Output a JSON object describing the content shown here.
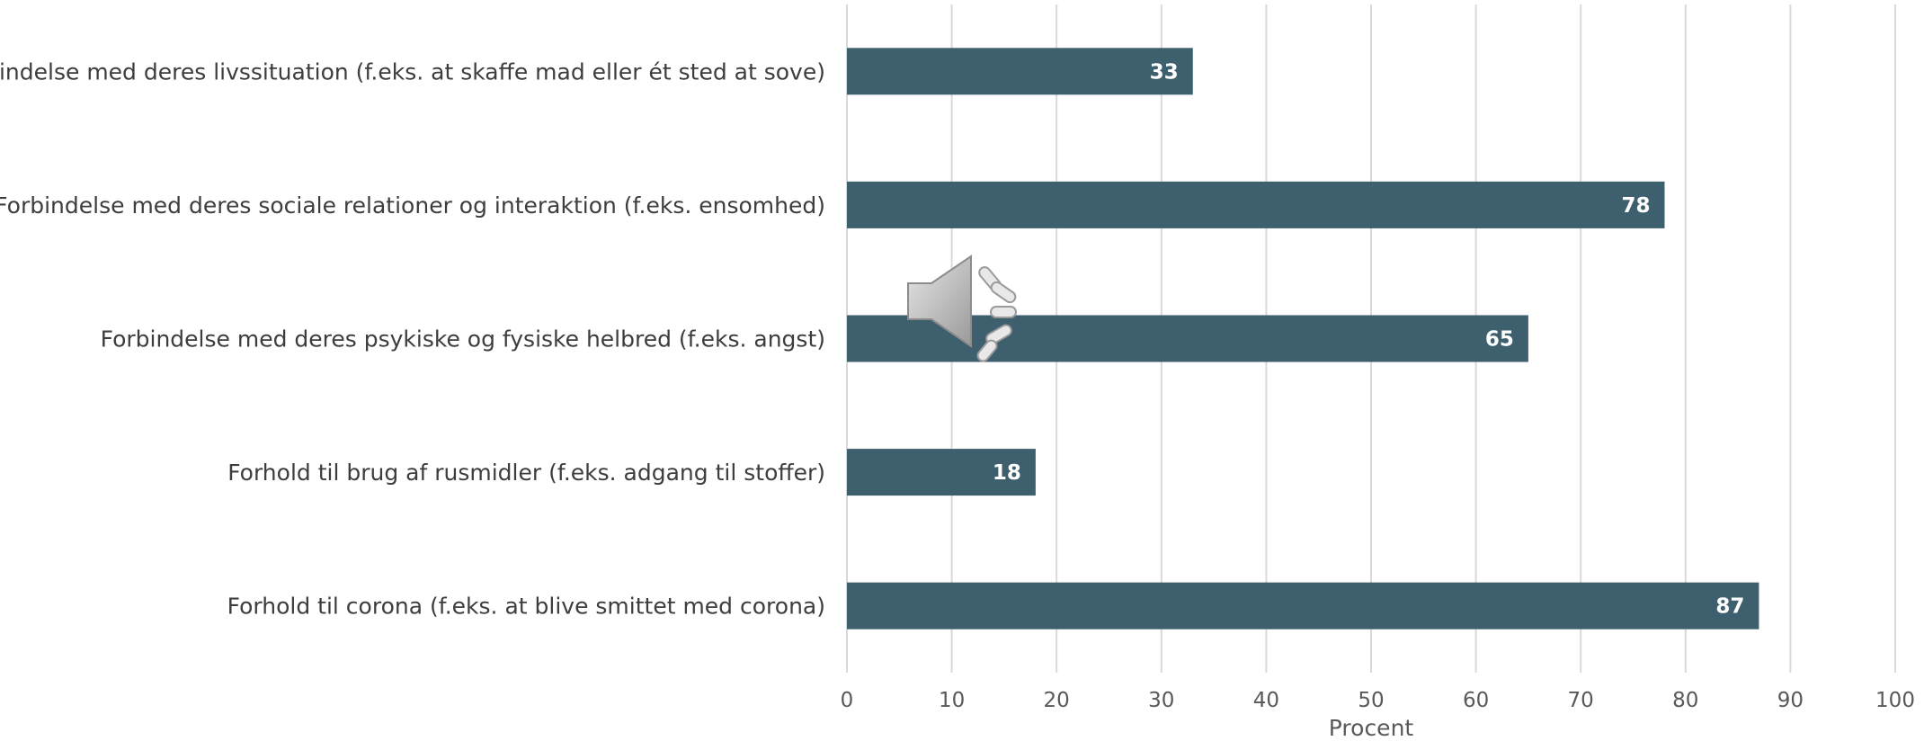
{
  "chart_data": {
    "type": "bar",
    "orientation": "horizontal",
    "categories": [
      "Forbindelse med deres livssituation (f.eks. at skaffe mad eller ét sted at sove)",
      "Forbindelse med deres sociale relationer og interaktion (f.eks. ensomhed)",
      "Forbindelse med deres psykiske og fysiske helbred (f.eks. angst)",
      "Forhold til brug af rusmidler (f.eks. adgang til stoffer)",
      "Forhold til corona (f.eks. at blive smittet med corona)"
    ],
    "values": [
      33,
      78,
      65,
      18,
      87
    ],
    "data_labels": [
      "33",
      "78",
      "65",
      "18",
      "87"
    ],
    "xlabel": "Procent",
    "ylabel": "",
    "xlim": [
      0,
      100
    ],
    "xticks": [
      "0",
      "10",
      "20",
      "30",
      "40",
      "50",
      "60",
      "70",
      "80",
      "90",
      "100"
    ],
    "grid": "vertical",
    "legend": "none",
    "bar_color": "#3e5f6e",
    "grid_color": "#d9d9d9"
  },
  "overlay": {
    "icon": "speaker-icon"
  }
}
